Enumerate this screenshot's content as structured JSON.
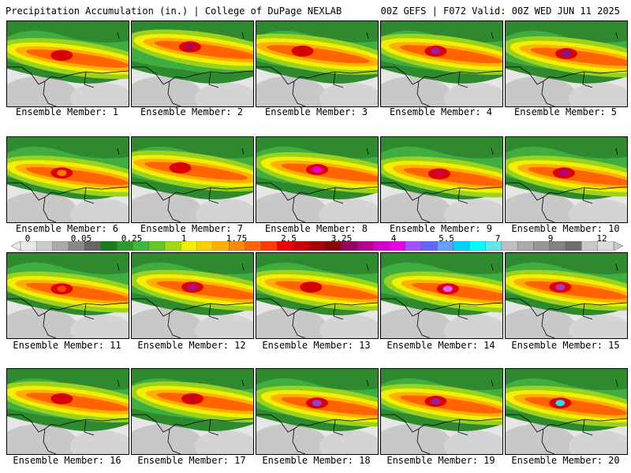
{
  "header": {
    "title_left": "Precipitation Accumulation (in.) | College of DuPage NEXLAB",
    "title_right": "00Z GEFS | F072 Valid: 00Z WED JUN 11 2025"
  },
  "panels": [
    {
      "member": 1,
      "label": "Ensemble Member: 1",
      "peak": "#cc0000",
      "mx": 0.45,
      "my": 0.4
    },
    {
      "member": 2,
      "label": "Ensemble Member: 2",
      "peak": "#b00050",
      "mx": 0.48,
      "my": 0.3
    },
    {
      "member": 3,
      "label": "Ensemble Member: 3",
      "peak": "#cc0000",
      "mx": 0.38,
      "my": 0.35
    },
    {
      "member": 4,
      "label": "Ensemble Member: 4",
      "peak": "#9b1bb0",
      "mx": 0.45,
      "my": 0.35
    },
    {
      "member": 5,
      "label": "Ensemble Member: 5",
      "peak": "#7a1aa0",
      "mx": 0.5,
      "my": 0.38
    },
    {
      "member": 6,
      "label": "Ensemble Member: 6",
      "peak": "#ff7700",
      "mx": 0.45,
      "my": 0.42
    },
    {
      "member": 7,
      "label": "Ensemble Member: 7",
      "peak": "#dd0000",
      "mx": 0.4,
      "my": 0.36
    },
    {
      "member": 8,
      "label": "Ensemble Member: 8",
      "peak": "#e000e0",
      "mx": 0.5,
      "my": 0.38
    },
    {
      "member": 9,
      "label": "Ensemble Member: 9",
      "peak": "#cc0040",
      "mx": 0.48,
      "my": 0.43
    },
    {
      "member": 10,
      "label": "Ensemble Member: 10",
      "peak": "#b0008a",
      "mx": 0.48,
      "my": 0.42
    },
    {
      "member": 11,
      "label": "Ensemble Member: 11",
      "peak": "#ff4400",
      "mx": 0.45,
      "my": 0.42
    },
    {
      "member": 12,
      "label": "Ensemble Member: 12",
      "peak": "#aa1090",
      "mx": 0.5,
      "my": 0.4
    },
    {
      "member": 13,
      "label": "Ensemble Member: 13",
      "peak": "#cc0000",
      "mx": 0.45,
      "my": 0.4
    },
    {
      "member": 14,
      "label": "Ensemble Member: 14",
      "peak": "#e060ff",
      "mx": 0.55,
      "my": 0.42
    },
    {
      "member": 15,
      "label": "Ensemble Member: 15",
      "peak": "#a040c0",
      "mx": 0.45,
      "my": 0.4
    },
    {
      "member": 16,
      "label": "Ensemble Member: 16",
      "peak": "#cc0000",
      "mx": 0.45,
      "my": 0.35
    },
    {
      "member": 17,
      "label": "Ensemble Member: 17",
      "peak": "#c00020",
      "mx": 0.5,
      "my": 0.35
    },
    {
      "member": 18,
      "label": "Ensemble Member: 18",
      "peak": "#9040e0",
      "mx": 0.5,
      "my": 0.4
    },
    {
      "member": 19,
      "label": "Ensemble Member: 19",
      "peak": "#9b1bb0",
      "mx": 0.45,
      "my": 0.38
    },
    {
      "member": 20,
      "label": "Ensemble Member: 20",
      "peak": "#20e0f0",
      "mx": 0.45,
      "my": 0.4
    }
  ],
  "colorbar": {
    "ticks": [
      "0",
      "0.05",
      "0.25",
      "1",
      "1.75",
      "2.5",
      "3.25",
      "4",
      "5.5",
      "7",
      "9",
      "12"
    ],
    "colors": [
      "#e8e8e8",
      "#cccccc",
      "#aaaaaa",
      "#888888",
      "#666666",
      "#1f7a1f",
      "#2f9a2f",
      "#3fb83f",
      "#64c81e",
      "#a0dc0a",
      "#f0f000",
      "#ffd000",
      "#ffb000",
      "#ff8c00",
      "#ff6400",
      "#ff3c00",
      "#e60000",
      "#c80000",
      "#aa0000",
      "#8c0000",
      "#960064",
      "#b4008c",
      "#d200c8",
      "#e600e6",
      "#a050ff",
      "#6464ff",
      "#64a0ff",
      "#00d2ff",
      "#00ffff",
      "#64e6e6",
      "#bebebe",
      "#aaaaaa",
      "#969696",
      "#828282",
      "#6e6e6e",
      "#c8c8c8",
      "#dcdcdc"
    ]
  }
}
